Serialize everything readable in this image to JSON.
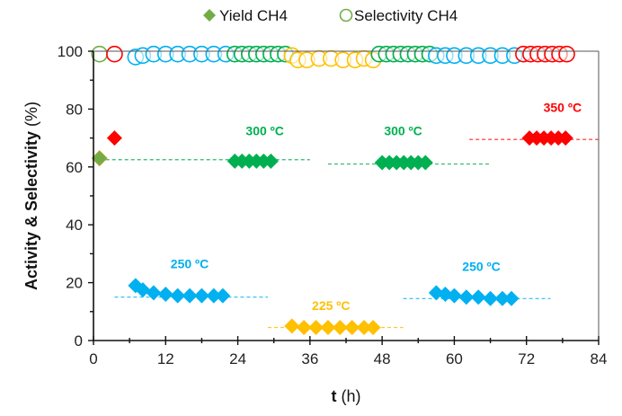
{
  "chart_data": {
    "type": "scatter",
    "title": "",
    "xlabel_bold": "t",
    "xlabel_rest": " (h)",
    "ylabel_bold": "Activity & Selectivity",
    "ylabel_rest": " (%)",
    "xlim": [
      0,
      84
    ],
    "ylim": [
      0,
      100
    ],
    "xticks": [
      0,
      12,
      24,
      36,
      48,
      60,
      72,
      84
    ],
    "yticks": [
      0,
      20,
      40,
      60,
      80,
      100
    ],
    "grid": false,
    "legend": {
      "position": "top-center",
      "entries": [
        {
          "label": "Yield CH4",
          "marker": "diamond-filled",
          "color": "#70ad47"
        },
        {
          "label": "Selectivity CH4",
          "marker": "circle-open",
          "color": "#70ad47"
        }
      ]
    },
    "colors": {
      "225": "#ffc000",
      "250": "#00b0f0",
      "300": "#00b050",
      "350": "#ff0000",
      "initial": "#70ad47"
    },
    "series": [
      {
        "name": "Yield CH4",
        "marker": "diamond",
        "groups": [
          {
            "temp": "initial",
            "points": [
              [
                1,
                63
              ]
            ]
          },
          {
            "temp": "350",
            "points": [
              [
                3.5,
                70
              ]
            ]
          },
          {
            "temp": "250",
            "points": [
              [
                7,
                19
              ],
              [
                8.2,
                17.5
              ],
              [
                10,
                16.5
              ],
              [
                12,
                16
              ],
              [
                14,
                15.5
              ],
              [
                16,
                15.5
              ],
              [
                18,
                15.5
              ],
              [
                20,
                15.5
              ],
              [
                21.5,
                15.5
              ]
            ]
          },
          {
            "temp": "300",
            "points": [
              [
                23.5,
                62
              ],
              [
                24.7,
                62
              ],
              [
                25.9,
                62
              ],
              [
                27.1,
                62
              ],
              [
                28.3,
                62
              ],
              [
                29.5,
                62
              ]
            ]
          },
          {
            "temp": "225",
            "points": [
              [
                33,
                5
              ],
              [
                35,
                4.5
              ],
              [
                37,
                4.5
              ],
              [
                39,
                4.5
              ],
              [
                41,
                4.5
              ],
              [
                43,
                4.5
              ],
              [
                45,
                4.5
              ],
              [
                46.5,
                4.5
              ]
            ]
          },
          {
            "temp": "300",
            "points": [
              [
                48,
                61.5
              ],
              [
                49.2,
                61.5
              ],
              [
                50.4,
                61.5
              ],
              [
                51.6,
                61.5
              ],
              [
                52.8,
                61.5
              ],
              [
                54,
                61.5
              ],
              [
                55.2,
                61.5
              ]
            ]
          },
          {
            "temp": "250",
            "points": [
              [
                57,
                16.5
              ],
              [
                58.5,
                16
              ],
              [
                60,
                15.5
              ],
              [
                62,
                15
              ],
              [
                64,
                15
              ],
              [
                66,
                14.5
              ],
              [
                68,
                14.5
              ],
              [
                69.5,
                14.5
              ]
            ]
          },
          {
            "temp": "350",
            "points": [
              [
                72.5,
                70
              ],
              [
                73.7,
                70
              ],
              [
                74.9,
                70
              ],
              [
                76.1,
                70
              ],
              [
                77.3,
                70
              ],
              [
                78.5,
                70
              ]
            ]
          }
        ]
      },
      {
        "name": "Selectivity CH4",
        "marker": "circle-open",
        "groups": [
          {
            "temp": "initial",
            "points": [
              [
                1,
                99
              ]
            ]
          },
          {
            "temp": "350",
            "points": [
              [
                3.5,
                99
              ]
            ]
          },
          {
            "temp": "250",
            "points": [
              [
                7,
                98
              ],
              [
                8.2,
                98.5
              ],
              [
                10,
                99
              ],
              [
                12,
                99
              ],
              [
                14,
                99
              ],
              [
                16,
                99
              ],
              [
                18,
                99
              ],
              [
                20,
                99
              ],
              [
                22,
                99
              ]
            ]
          },
          {
            "temp": "300",
            "points": [
              [
                23.5,
                99
              ],
              [
                24.7,
                99
              ],
              [
                25.9,
                99
              ],
              [
                27.1,
                99
              ],
              [
                28.3,
                99
              ],
              [
                29.5,
                99
              ],
              [
                30.7,
                99
              ],
              [
                31.9,
                99
              ]
            ]
          },
          {
            "temp": "225",
            "points": [
              [
                33,
                98.5
              ],
              [
                34,
                97
              ],
              [
                35.5,
                97
              ],
              [
                37.5,
                97.5
              ],
              [
                39.5,
                97.5
              ],
              [
                41.5,
                97
              ],
              [
                43.5,
                97
              ],
              [
                45,
                97.5
              ],
              [
                46.5,
                97
              ]
            ]
          },
          {
            "temp": "300",
            "points": [
              [
                47.5,
                99
              ],
              [
                48.7,
                99
              ],
              [
                49.9,
                99
              ],
              [
                51.1,
                99
              ],
              [
                52.3,
                99
              ],
              [
                53.5,
                99
              ],
              [
                54.7,
                99
              ],
              [
                55.9,
                99
              ]
            ]
          },
          {
            "temp": "250",
            "points": [
              [
                57,
                98.5
              ],
              [
                58.5,
                98.5
              ],
              [
                60,
                98.5
              ],
              [
                62,
                98.5
              ],
              [
                64,
                98.5
              ],
              [
                66,
                98.5
              ],
              [
                68,
                98.5
              ],
              [
                70,
                98.5
              ]
            ]
          },
          {
            "temp": "350",
            "points": [
              [
                71.5,
                99
              ],
              [
                72.7,
                99
              ],
              [
                73.9,
                99
              ],
              [
                75.1,
                99
              ],
              [
                76.3,
                99
              ],
              [
                77.5,
                99
              ],
              [
                78.7,
                99
              ]
            ]
          }
        ]
      }
    ],
    "reference_lines": [
      {
        "temp": "300",
        "y": 62.5,
        "x_range": [
          1,
          36
        ]
      },
      {
        "temp": "300",
        "y": 61,
        "x_range": [
          39,
          66
        ]
      },
      {
        "temp": "350",
        "y": 69.5,
        "x_range": [
          62.5,
          84
        ]
      },
      {
        "temp": "250",
        "y": 15,
        "x_range": [
          3.5,
          29
        ]
      },
      {
        "temp": "250",
        "y": 14.5,
        "x_range": [
          51.5,
          76
        ]
      },
      {
        "temp": "225",
        "y": 4.5,
        "x_range": [
          29,
          51.5
        ]
      }
    ],
    "annotations": [
      {
        "text": "300 ºC",
        "temp": "300",
        "x": 28.5,
        "y": 71
      },
      {
        "text": "300 ºC",
        "temp": "300",
        "x": 51.5,
        "y": 71
      },
      {
        "text": "350 ºC",
        "temp": "350",
        "x": 78,
        "y": 79
      },
      {
        "text": "250 ºC",
        "temp": "250",
        "x": 16,
        "y": 25
      },
      {
        "text": "250 ºC",
        "temp": "250",
        "x": 64.5,
        "y": 24
      },
      {
        "text": "225 ºC",
        "temp": "225",
        "x": 39.5,
        "y": 10.5
      }
    ]
  }
}
